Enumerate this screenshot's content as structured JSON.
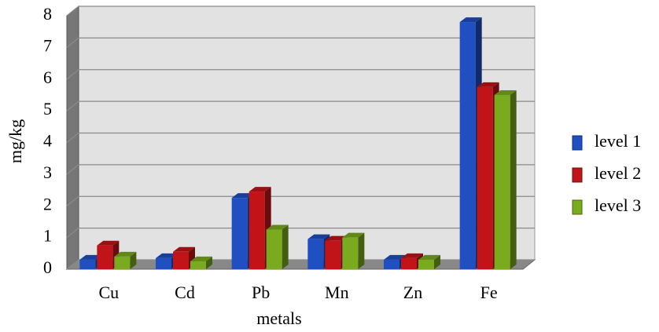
{
  "chart_data": {
    "type": "bar3d",
    "y_label": "mg/kg",
    "x_label": "metals",
    "categories": [
      "Cu",
      "Cd",
      "Pb",
      "Mn",
      "Zn",
      "Fe"
    ],
    "series": [
      {
        "name": "level 1",
        "color": "#1f4fc0",
        "values": [
          0.3,
          0.35,
          2.25,
          0.95,
          0.3,
          7.8
        ]
      },
      {
        "name": "level 2",
        "color": "#c01418",
        "values": [
          0.75,
          0.55,
          2.45,
          0.9,
          0.35,
          5.75
        ]
      },
      {
        "name": "level 3",
        "color": "#7aab1e",
        "values": [
          0.4,
          0.25,
          1.25,
          1.0,
          0.3,
          5.5
        ]
      }
    ],
    "ylim": [
      0,
      8
    ],
    "yticks": [
      0,
      1,
      2,
      3,
      4,
      5,
      6,
      7,
      8
    ],
    "grid": true,
    "legend": "right"
  }
}
